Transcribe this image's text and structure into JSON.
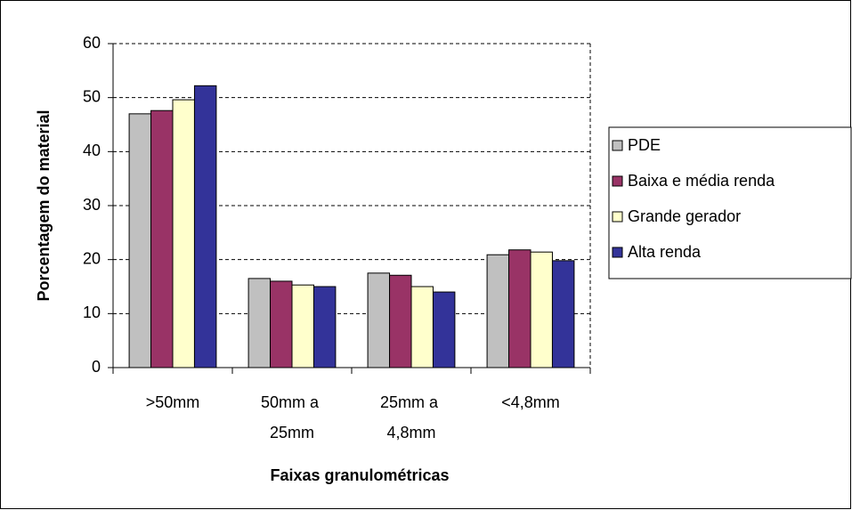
{
  "chart_data": {
    "type": "bar",
    "xlabel": "Faixas granulométricas",
    "ylabel": "Porcentagem do material",
    "categories": [
      ">50mm",
      "50mm a 25mm",
      "25mm a 4,8mm",
      "<4,8mm"
    ],
    "series": [
      {
        "name": "PDE",
        "color": "#c0c0c0",
        "values": [
          47,
          16.5,
          17.5,
          20.9
        ]
      },
      {
        "name": "Baixa e média renda",
        "color": "#993366",
        "values": [
          47.6,
          16,
          17.1,
          21.8
        ]
      },
      {
        "name": "Grande gerador",
        "color": "#ffffcc",
        "values": [
          49.6,
          15.3,
          15,
          21.4
        ]
      },
      {
        "name": "Alta renda",
        "color": "#333399",
        "values": [
          52.2,
          15,
          14,
          19.8
        ]
      }
    ],
    "ylim": [
      0,
      60
    ],
    "yticks": [
      0,
      10,
      20,
      30,
      40,
      50,
      60
    ],
    "grid": true,
    "legend": "right"
  }
}
